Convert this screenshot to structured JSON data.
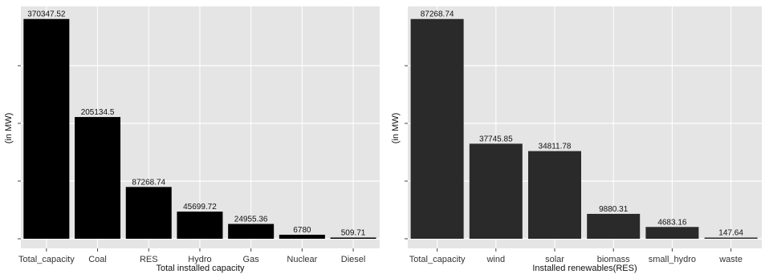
{
  "chart_data": [
    {
      "type": "bar",
      "xlabel": "Total installed capacity",
      "ylabel": "(in MW)",
      "categories": [
        "Total_capacity",
        "Coal",
        "RES",
        "Hydro",
        "Gas",
        "Nuclear",
        "Diesel"
      ],
      "values": [
        370347.52,
        205134.5,
        87268.74,
        45699.72,
        24955.36,
        6780,
        509.71
      ],
      "value_labels": [
        "370347.52",
        "205134.5",
        "87268.74",
        "45699.72",
        "24955.36",
        "6780",
        "509.71"
      ],
      "ylim": [
        0,
        370347.52
      ],
      "grid": true,
      "bar_color": "#000000",
      "panel_color": "#e5e5e5"
    },
    {
      "type": "bar",
      "xlabel": "Installed renewables(RES)",
      "ylabel": "(in MW)",
      "categories": [
        "Total_capacity",
        "wind",
        "solar",
        "biomass",
        "small_hydro",
        "waste"
      ],
      "values": [
        87268.74,
        37745.85,
        34811.78,
        9880.31,
        4683.16,
        147.64
      ],
      "value_labels": [
        "87268.74",
        "37745.85",
        "34811.78",
        "9880.31",
        "4683.16",
        "147.64"
      ],
      "ylim": [
        0,
        87268.74
      ],
      "grid": true,
      "bar_color": "#2a2a2a",
      "panel_color": "#e5e5e5"
    }
  ]
}
